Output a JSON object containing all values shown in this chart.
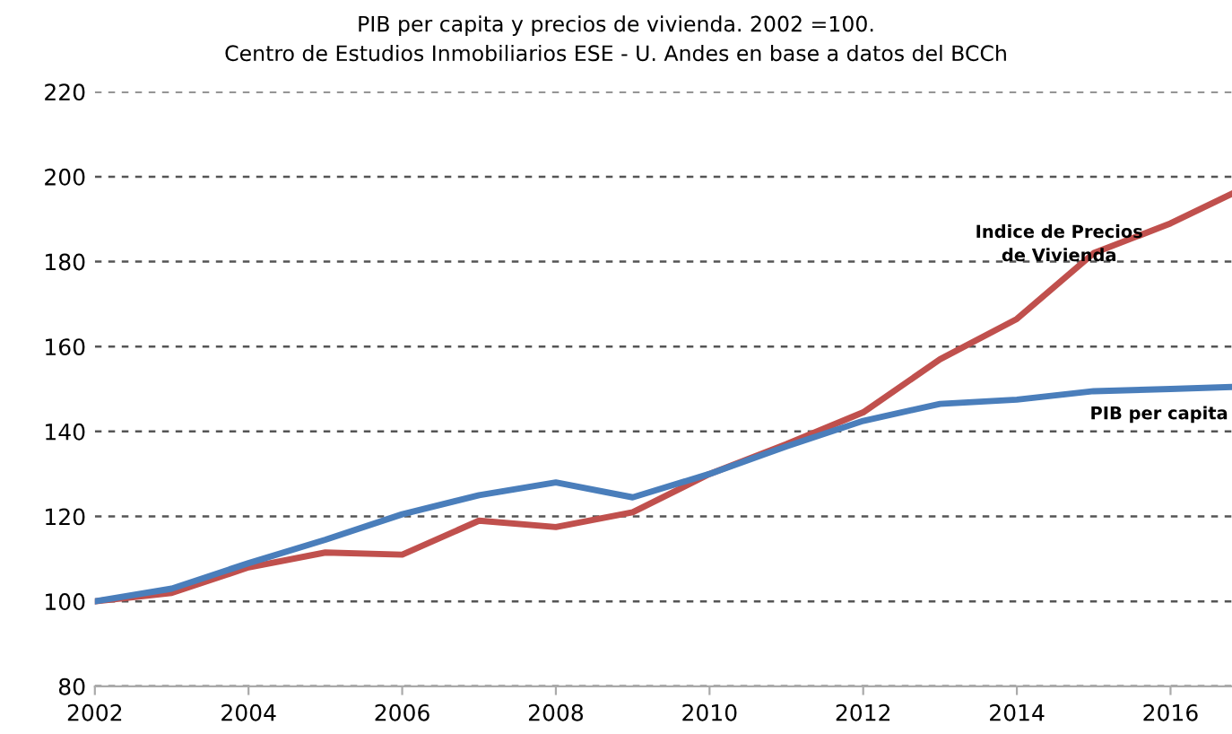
{
  "chart_data": {
    "type": "line",
    "title": "PIB per capita y precios de vivienda. 2002 =100.",
    "subtitle": "Centro de Estudios Inmobiliarios ESE - U. Andes en base a datos del BCCh",
    "x": [
      2002,
      2003,
      2004,
      2005,
      2006,
      2007,
      2008,
      2009,
      2010,
      2011,
      2012,
      2013,
      2014,
      2015,
      2016,
      2016.8
    ],
    "series": [
      {
        "name": "Indice de Precios de Vivienda",
        "color": "#c0504d",
        "values": [
          100,
          102,
          108,
          111.5,
          111,
          119,
          117.5,
          121,
          130,
          137,
          144.5,
          157,
          166.5,
          182,
          189,
          196
        ]
      },
      {
        "name": "PIB per capita",
        "color": "#4a7ebb",
        "values": [
          100,
          103,
          109,
          114.5,
          120.5,
          125,
          128,
          124.5,
          130,
          136.5,
          142.5,
          146.5,
          147.5,
          149.5,
          150,
          150.5
        ]
      }
    ],
    "xlim": [
      2002,
      2016.8
    ],
    "xticks": [
      2002,
      2004,
      2006,
      2008,
      2010,
      2012,
      2014,
      2016
    ],
    "ylim": [
      80,
      220
    ],
    "yticks": [
      80,
      100,
      120,
      140,
      160,
      180,
      200,
      220
    ],
    "grid": "y",
    "line_style": "solid",
    "marker": "none",
    "legend": false
  }
}
